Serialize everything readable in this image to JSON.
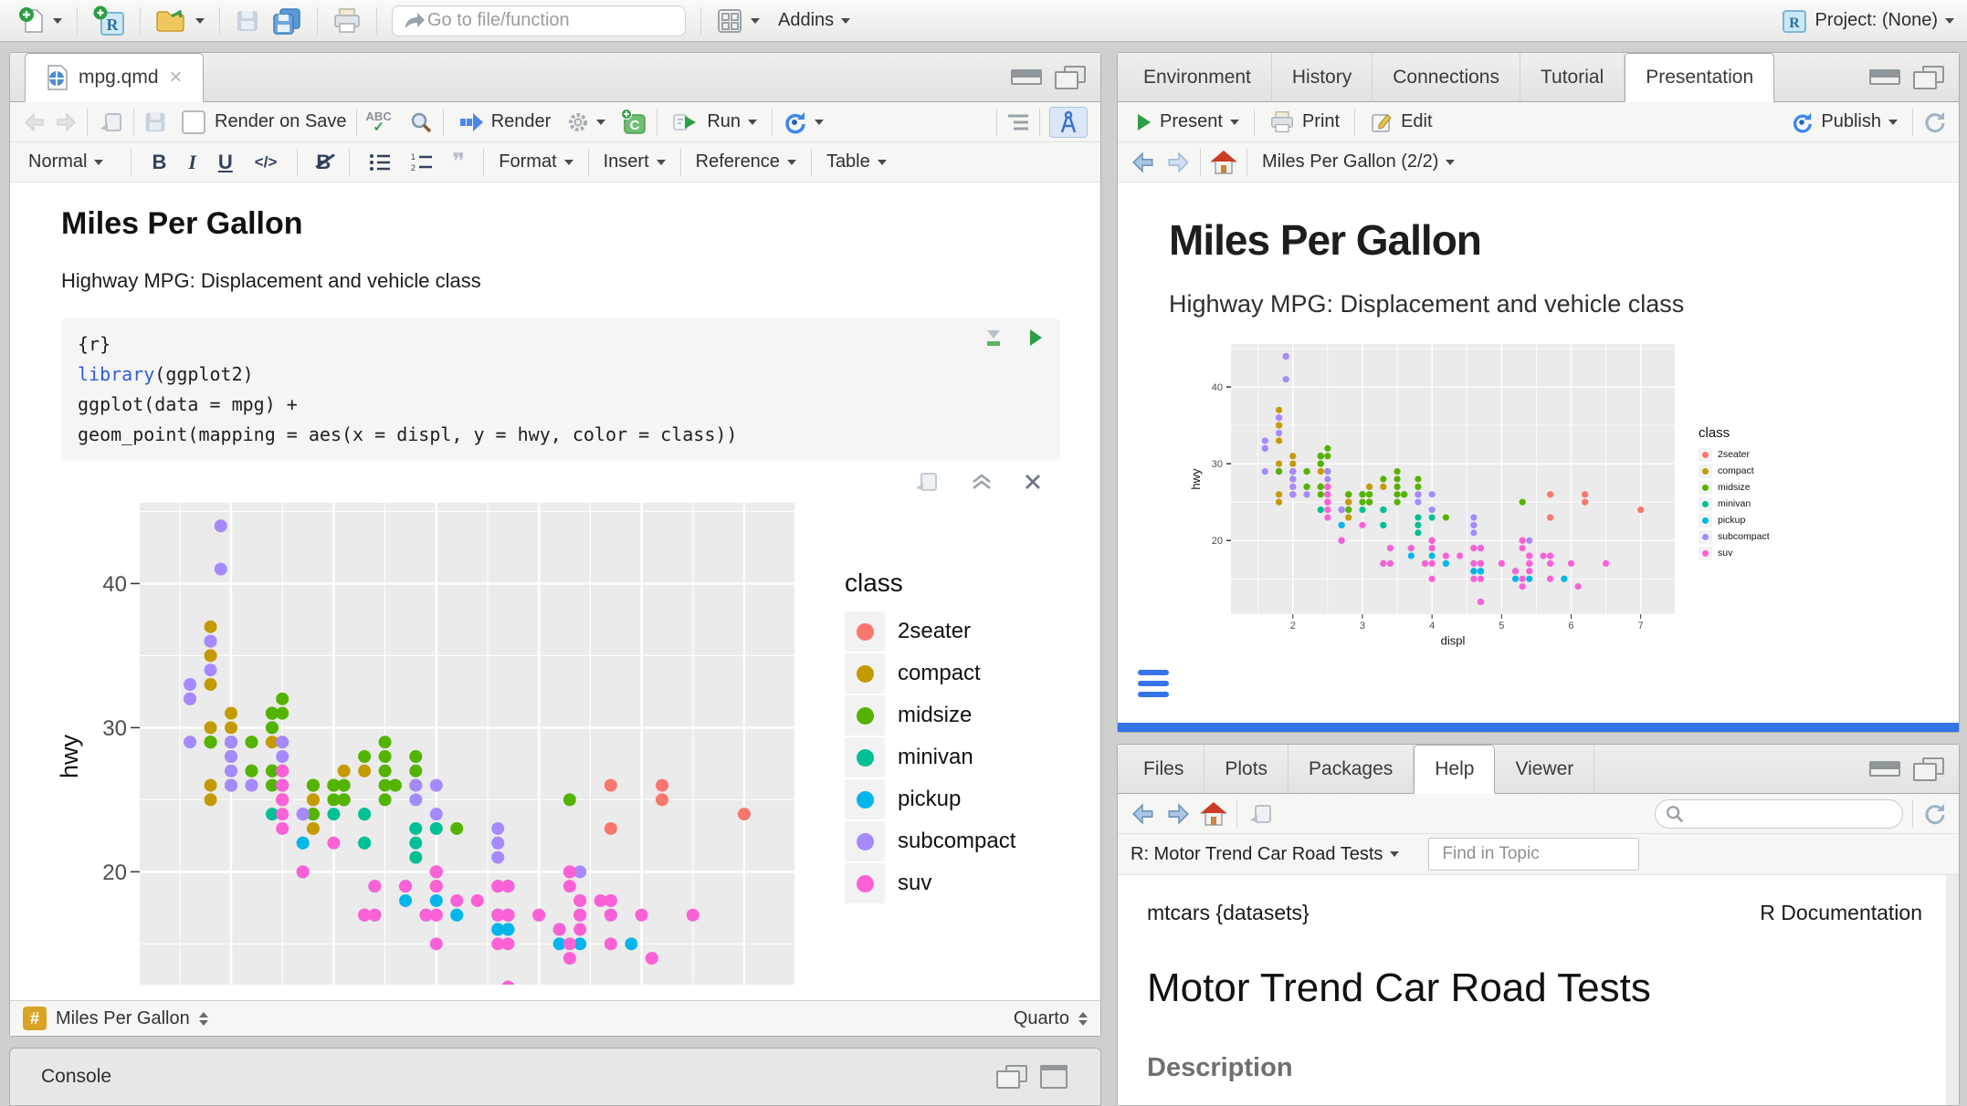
{
  "app_toolbar": {
    "goto_placeholder": "Go to file/function",
    "addins_label": "Addins",
    "project_label": "Project: (None)"
  },
  "glyphs": {
    "close": "×",
    "bold": "B",
    "italic": "I",
    "underline": "U",
    "code": "</>",
    "quote": "❞",
    "abc": "ABC",
    "check": "✓",
    "hash": "#",
    "chevron_up": "⌃"
  },
  "source_pane": {
    "tab_label": "mpg.qmd",
    "editor_toolbar": {
      "render_on_save": "Render on Save",
      "render": "Render",
      "run": "Run"
    },
    "format_bar": {
      "style": "Normal",
      "format": "Format",
      "insert": "Insert",
      "reference": "Reference",
      "table": "Table"
    },
    "document": {
      "title": "Miles Per Gallon",
      "subtitle": "Highway MPG: Displacement and vehicle class"
    },
    "code_chunk": {
      "lines": [
        [
          {
            "t": "{r}"
          }
        ],
        [
          {
            "t": "library",
            "c": "fn"
          },
          {
            "t": "(ggplot2)"
          }
        ],
        [
          {
            "t": "ggplot(data = mpg) +"
          }
        ],
        [
          {
            "t": "  geom_point(mapping = aes(x = displ, y = hwy, color = class))"
          }
        ]
      ]
    },
    "status_bar": {
      "section": "Miles Per Gallon",
      "mode": "Quarto"
    },
    "console_label": "Console"
  },
  "pres_pane": {
    "tabs": [
      "Environment",
      "History",
      "Connections",
      "Tutorial",
      "Presentation"
    ],
    "active_tab": "Presentation",
    "toolbar": {
      "present": "Present",
      "print": "Print",
      "edit": "Edit",
      "publish": "Publish"
    },
    "nav_title": "Miles Per Gallon (2/2)",
    "slide": {
      "title": "Miles Per Gallon",
      "subtitle": "Highway MPG: Displacement and vehicle class"
    }
  },
  "help_pane": {
    "tabs": [
      "Files",
      "Plots",
      "Packages",
      "Help",
      "Viewer"
    ],
    "active_tab": "Help",
    "topic_label": "R: Motor Trend Car Road Tests",
    "find_placeholder": "Find in Topic",
    "content": {
      "package_line": "mtcars {datasets}",
      "doc_label": "R Documentation",
      "title": "Motor Trend Car Road Tests",
      "section": "Description"
    }
  },
  "chart_data": {
    "type": "scatter",
    "title": "",
    "xlabel": "displ",
    "ylabel": "hwy",
    "legend_title": "class",
    "legend_position": "right",
    "grid": true,
    "xlim": [
      1.11,
      7.49
    ],
    "ylim": [
      10.4,
      45.6
    ],
    "x_ticks": [
      2,
      3,
      4,
      5,
      6,
      7
    ],
    "y_ticks": [
      20,
      30,
      40
    ],
    "x_minor": [
      1.5,
      2.5,
      3.5,
      4.5,
      5.5,
      6.5
    ],
    "y_minor": [
      15,
      25,
      35,
      45
    ],
    "panel_color": "#EBEBEB",
    "palette": {
      "2seater": "#F8766D",
      "compact": "#C49A00",
      "midsize": "#53B400",
      "minivan": "#00C094",
      "pickup": "#00B6EB",
      "subcompact": "#A58AFF",
      "suv": "#FB61D7"
    },
    "series": [
      {
        "name": "2seater",
        "points": [
          [
            5.7,
            26
          ],
          [
            5.7,
            23
          ],
          [
            6.2,
            26
          ],
          [
            6.2,
            25
          ],
          [
            7.0,
            24
          ]
        ]
      },
      {
        "name": "compact",
        "points": [
          [
            1.8,
            29
          ],
          [
            1.8,
            29
          ],
          [
            2.0,
            31
          ],
          [
            2.0,
            30
          ],
          [
            2.8,
            26
          ],
          [
            2.8,
            26
          ],
          [
            3.1,
            27
          ],
          [
            1.8,
            26
          ],
          [
            1.8,
            25
          ],
          [
            2.0,
            28
          ],
          [
            2.0,
            27
          ],
          [
            2.8,
            25
          ],
          [
            2.8,
            25
          ],
          [
            3.1,
            25
          ],
          [
            3.1,
            25
          ],
          [
            2.4,
            29
          ],
          [
            2.4,
            27
          ],
          [
            2.5,
            25
          ],
          [
            2.5,
            27
          ],
          [
            2.5,
            25
          ],
          [
            2.5,
            27
          ],
          [
            2.2,
            27
          ],
          [
            2.2,
            29
          ],
          [
            2.4,
            31
          ],
          [
            2.4,
            31
          ],
          [
            3.0,
            26
          ],
          [
            3.0,
            26
          ],
          [
            3.3,
            27
          ],
          [
            1.8,
            30
          ],
          [
            1.8,
            33
          ],
          [
            1.8,
            35
          ],
          [
            1.8,
            37
          ],
          [
            1.8,
            35
          ],
          [
            2.0,
            29
          ],
          [
            2.0,
            26
          ],
          [
            2.0,
            29
          ],
          [
            2.0,
            29
          ],
          [
            2.8,
            24
          ],
          [
            1.9,
            44
          ],
          [
            2.0,
            29
          ],
          [
            2.0,
            26
          ],
          [
            2.0,
            29
          ],
          [
            2.0,
            29
          ],
          [
            2.5,
            29
          ],
          [
            2.5,
            29
          ],
          [
            2.8,
            23
          ],
          [
            2.8,
            24
          ]
        ]
      },
      {
        "name": "midsize",
        "points": [
          [
            2.8,
            24
          ],
          [
            3.1,
            25
          ],
          [
            4.2,
            23
          ],
          [
            2.4,
            27
          ],
          [
            2.4,
            30
          ],
          [
            3.1,
            26
          ],
          [
            3.5,
            29
          ],
          [
            3.6,
            26
          ],
          [
            2.4,
            26
          ],
          [
            2.4,
            27
          ],
          [
            2.4,
            30
          ],
          [
            2.4,
            31
          ],
          [
            2.5,
            26
          ],
          [
            2.5,
            26
          ],
          [
            3.3,
            28
          ],
          [
            2.5,
            31
          ],
          [
            2.5,
            32
          ],
          [
            3.5,
            27
          ],
          [
            3.5,
            26
          ],
          [
            3.0,
            26
          ],
          [
            3.0,
            25
          ],
          [
            3.5,
            25
          ],
          [
            3.1,
            26
          ],
          [
            3.8,
            26
          ],
          [
            3.8,
            27
          ],
          [
            3.8,
            28
          ],
          [
            5.3,
            25
          ],
          [
            2.2,
            29
          ],
          [
            2.2,
            27
          ],
          [
            2.4,
            31
          ],
          [
            2.4,
            31
          ],
          [
            3.0,
            26
          ],
          [
            3.0,
            26
          ],
          [
            3.5,
            28
          ],
          [
            1.8,
            29
          ],
          [
            1.8,
            29
          ],
          [
            2.0,
            28
          ],
          [
            2.0,
            29
          ],
          [
            2.8,
            26
          ],
          [
            2.8,
            26
          ],
          [
            3.6,
            26
          ]
        ]
      },
      {
        "name": "minivan",
        "points": [
          [
            2.4,
            24
          ],
          [
            3.0,
            24
          ],
          [
            3.3,
            22
          ],
          [
            3.3,
            22
          ],
          [
            3.3,
            24
          ],
          [
            3.3,
            24
          ],
          [
            3.3,
            17
          ],
          [
            3.8,
            22
          ],
          [
            3.8,
            21
          ],
          [
            3.8,
            23
          ],
          [
            4.0,
            23
          ]
        ]
      },
      {
        "name": "pickup",
        "points": [
          [
            3.7,
            19
          ],
          [
            3.7,
            18
          ],
          [
            3.9,
            17
          ],
          [
            3.9,
            17
          ],
          [
            4.7,
            19
          ],
          [
            4.7,
            19
          ],
          [
            4.7,
            12
          ],
          [
            4.7,
            16
          ],
          [
            4.7,
            12
          ],
          [
            4.7,
            17
          ],
          [
            4.7,
            17
          ],
          [
            4.7,
            16
          ],
          [
            4.7,
            16
          ],
          [
            5.2,
            15
          ],
          [
            5.2,
            16
          ],
          [
            5.7,
            17
          ],
          [
            5.9,
            15
          ],
          [
            4.2,
            17
          ],
          [
            4.2,
            17
          ],
          [
            4.6,
            16
          ],
          [
            4.6,
            16
          ],
          [
            4.6,
            17
          ],
          [
            5.4,
            15
          ],
          [
            5.4,
            17
          ],
          [
            2.7,
            22
          ],
          [
            2.7,
            20
          ],
          [
            2.7,
            22
          ],
          [
            3.4,
            17
          ],
          [
            3.4,
            19
          ],
          [
            4.0,
            18
          ],
          [
            4.0,
            20
          ]
        ]
      },
      {
        "name": "subcompact",
        "points": [
          [
            3.8,
            26
          ],
          [
            3.8,
            25
          ],
          [
            4.0,
            26
          ],
          [
            4.0,
            24
          ],
          [
            4.6,
            21
          ],
          [
            4.6,
            22
          ],
          [
            4.6,
            23
          ],
          [
            4.6,
            22
          ],
          [
            5.4,
            20
          ],
          [
            1.6,
            33
          ],
          [
            1.6,
            32
          ],
          [
            1.6,
            32
          ],
          [
            1.6,
            29
          ],
          [
            1.6,
            32
          ],
          [
            1.8,
            34
          ],
          [
            1.8,
            36
          ],
          [
            1.8,
            36
          ],
          [
            2.0,
            29
          ],
          [
            2.0,
            26
          ],
          [
            2.0,
            29
          ],
          [
            2.0,
            28
          ],
          [
            2.0,
            27
          ],
          [
            2.7,
            24
          ],
          [
            2.7,
            24
          ],
          [
            2.7,
            24
          ],
          [
            2.2,
            26
          ],
          [
            2.2,
            26
          ],
          [
            2.5,
            26
          ],
          [
            2.5,
            26
          ],
          [
            1.9,
            44
          ],
          [
            1.9,
            41
          ],
          [
            2.0,
            29
          ],
          [
            2.0,
            26
          ],
          [
            2.5,
            28
          ],
          [
            2.5,
            29
          ]
        ]
      },
      {
        "name": "suv",
        "points": [
          [
            5.3,
            20
          ],
          [
            5.3,
            15
          ],
          [
            5.3,
            20
          ],
          [
            5.7,
            17
          ],
          [
            6.0,
            17
          ],
          [
            5.3,
            19
          ],
          [
            5.3,
            14
          ],
          [
            5.7,
            15
          ],
          [
            6.5,
            17
          ],
          [
            3.9,
            17
          ],
          [
            4.7,
            17
          ],
          [
            4.7,
            12
          ],
          [
            4.7,
            17
          ],
          [
            5.2,
            16
          ],
          [
            5.7,
            18
          ],
          [
            4.6,
            17
          ],
          [
            5.4,
            17
          ],
          [
            5.4,
            18
          ],
          [
            4.0,
            17
          ],
          [
            4.0,
            19
          ],
          [
            4.0,
            17
          ],
          [
            4.0,
            19
          ],
          [
            4.6,
            19
          ],
          [
            5.0,
            17
          ],
          [
            3.0,
            22
          ],
          [
            3.7,
            19
          ],
          [
            4.0,
            20
          ],
          [
            4.7,
            17
          ],
          [
            4.7,
            12
          ],
          [
            4.7,
            19
          ],
          [
            5.7,
            18
          ],
          [
            6.1,
            14
          ],
          [
            4.0,
            15
          ],
          [
            4.2,
            18
          ],
          [
            4.4,
            18
          ],
          [
            4.6,
            15
          ],
          [
            5.4,
            17
          ],
          [
            5.4,
            16
          ],
          [
            5.4,
            18
          ],
          [
            4.0,
            17
          ],
          [
            4.0,
            19
          ],
          [
            4.6,
            19
          ],
          [
            5.0,
            17
          ],
          [
            3.3,
            17
          ],
          [
            3.3,
            17
          ],
          [
            4.0,
            20
          ],
          [
            5.6,
            18
          ],
          [
            2.5,
            25
          ],
          [
            2.5,
            24
          ],
          [
            2.5,
            27
          ],
          [
            2.5,
            25
          ],
          [
            2.5,
            23
          ],
          [
            2.5,
            26
          ],
          [
            2.7,
            20
          ],
          [
            2.7,
            20
          ],
          [
            3.4,
            19
          ],
          [
            3.4,
            17
          ],
          [
            4.0,
            20
          ],
          [
            4.7,
            17
          ],
          [
            4.7,
            15
          ],
          [
            5.7,
            18
          ]
        ]
      }
    ]
  }
}
